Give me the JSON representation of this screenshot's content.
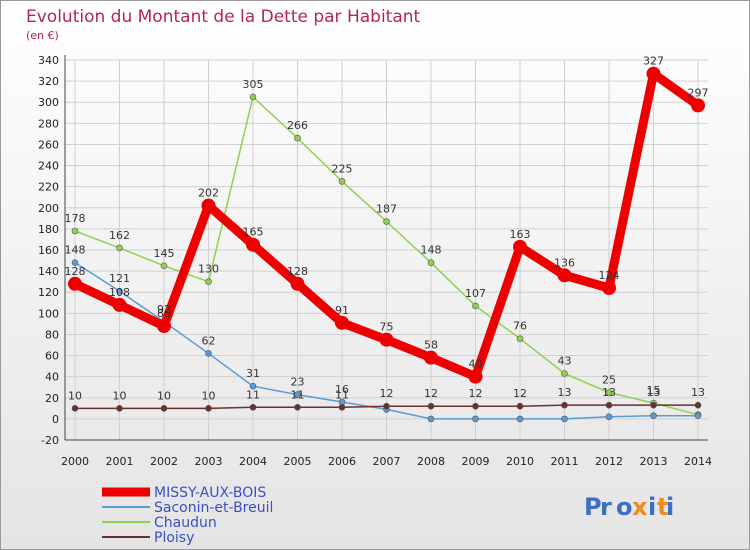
{
  "header": {
    "title": "Evolution du Montant de la Dette par Habitant",
    "unit": "(en €)"
  },
  "logo": {
    "text": "Proxiti"
  },
  "chart_data": {
    "type": "line",
    "title": "Evolution du Montant de la Dette par Habitant",
    "ylabel": "(en €)",
    "xlabel": "",
    "x": [
      2000,
      2001,
      2002,
      2003,
      2004,
      2005,
      2006,
      2007,
      2008,
      2009,
      2010,
      2011,
      2012,
      2013,
      2014
    ],
    "ylim": [
      -20,
      340
    ],
    "yticks": [
      -20,
      0,
      20,
      40,
      60,
      80,
      100,
      120,
      140,
      160,
      180,
      200,
      220,
      240,
      260,
      280,
      300,
      320,
      340
    ],
    "grid": true,
    "legend_position": "bottom-left",
    "series": [
      {
        "name": "MISSY-AUX-BOIS",
        "color": "#ee0000",
        "values": [
          128,
          108,
          88,
          202,
          165,
          128,
          91,
          75,
          58,
          40,
          163,
          136,
          124,
          327,
          297
        ],
        "labels": [
          128,
          108,
          88,
          202,
          165,
          128,
          91,
          75,
          58,
          40,
          163,
          136,
          124,
          327,
          297
        ]
      },
      {
        "name": "Saconin-et-Breuil",
        "color": "#5b9bd5",
        "values": [
          148,
          121,
          92,
          62,
          31,
          23,
          16,
          9,
          0,
          0,
          0,
          0,
          2,
          3,
          3
        ],
        "labels": [
          148,
          121,
          92,
          62,
          31,
          23,
          16,
          null,
          null,
          null,
          null,
          null,
          null,
          null,
          null
        ]
      },
      {
        "name": "Chaudun",
        "color": "#8fd14f",
        "values": [
          178,
          162,
          145,
          130,
          305,
          266,
          225,
          187,
          148,
          107,
          76,
          43,
          25,
          15,
          4
        ],
        "labels": [
          178,
          162,
          145,
          130,
          305,
          266,
          225,
          187,
          148,
          107,
          76,
          43,
          25,
          15,
          null
        ]
      },
      {
        "name": "Ploisy",
        "color": "#6b2f2f",
        "values": [
          10,
          10,
          10,
          10,
          11,
          11,
          11,
          12,
          12,
          12,
          12,
          13,
          13,
          13,
          13
        ],
        "labels": [
          10,
          10,
          10,
          10,
          11,
          11,
          11,
          12,
          12,
          12,
          12,
          13,
          13,
          13,
          13
        ]
      }
    ]
  }
}
